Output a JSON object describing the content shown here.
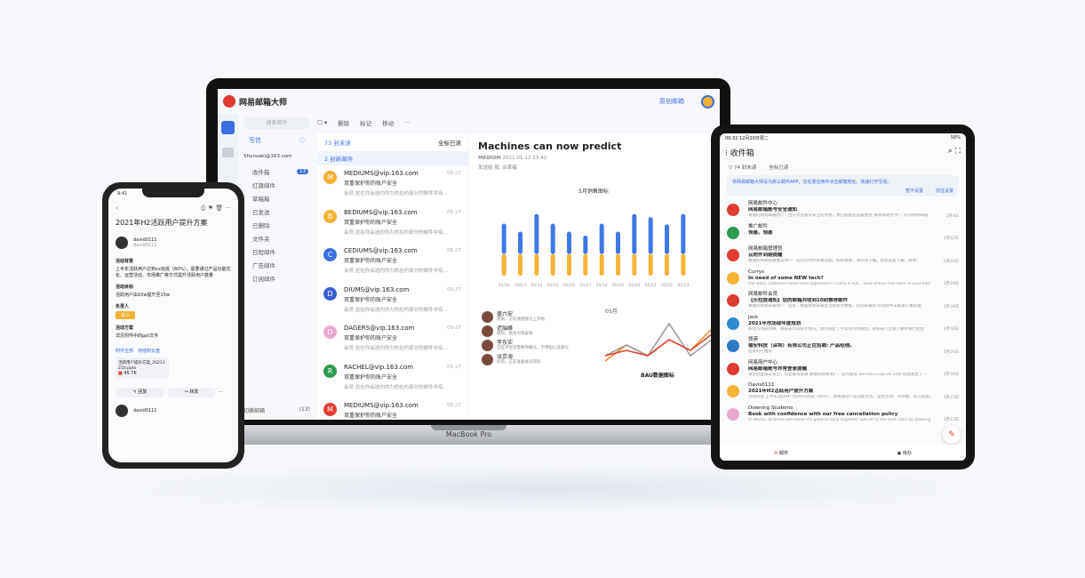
{
  "laptop": {
    "brand": "MacBook Pro",
    "app_title": "网易邮箱大师",
    "header_link": "原创邮箱",
    "search_placeholder": "搜索邮件",
    "compose": "写信",
    "account": "Shunsaki@163.com",
    "folders": [
      {
        "label": "收件箱",
        "badge": "13"
      },
      {
        "label": "红旗邮件"
      },
      {
        "label": "草稿箱"
      },
      {
        "label": "已发送"
      },
      {
        "label": "已删除"
      },
      {
        "label": "文件夹"
      },
      {
        "label": "日程邮件"
      },
      {
        "label": "广告邮件"
      },
      {
        "label": "订阅邮件"
      }
    ],
    "switch_mailbox": "切换邮箱",
    "switch_count": "(13)",
    "toolbar": {
      "delete": "删除",
      "mark": "标记",
      "move": "移动",
      "more": "···"
    },
    "unread": "73 封未读",
    "mark_all": "全标已读",
    "new_mail": "2 封新邮件",
    "mails": [
      {
        "from": "MEDIUMS@vip.163.com",
        "initial": "M",
        "color": "#f2b233",
        "subject": "双重保护你的账户安全",
        "preview": "会员  这在你会选约你力的在约部分的邮件中有...",
        "date": "05-27"
      },
      {
        "from": "BEDIUMS@vip.163.com",
        "initial": "B",
        "color": "#f2b233",
        "subject": "双重保护你的账户安全",
        "preview": "会员  这在你会选约你力的在约部分的邮件中有...",
        "date": "05-27"
      },
      {
        "from": "CEDIUMS@vip.163.com",
        "initial": "C",
        "color": "#3b6fe0",
        "subject": "双重保护你的账户安全",
        "preview": "会员  这在你会选约你力的在约部分的邮件中有...",
        "date": "05-27"
      },
      {
        "from": "DIUMS@vip.163.com",
        "initial": "D",
        "color": "#3a5fcf",
        "subject": "双重保护你的账户安全",
        "preview": "会员  这在你会选约你力的在约部分的邮件中有...",
        "date": "05-27"
      },
      {
        "from": "DAGERS@vip.163.com",
        "initial": "D",
        "color": "#e9a9cf",
        "subject": "双重保护你的账户安全",
        "preview": "会员  这在你会选约你力的在约部分的邮件中有...",
        "date": "05-27"
      },
      {
        "from": "RACHEL@vip.163.com",
        "initial": "R",
        "color": "#2e9b4f",
        "subject": "双重保护你的账户安全",
        "preview": "会员  这在你会选约你力的在约部分的邮件中有...",
        "date": "05-27"
      },
      {
        "from": "MEDIUMS@vip.163.com",
        "initial": "M",
        "color": "#e03c31",
        "subject": "双重保护你的账户安全",
        "preview": "会员  这在你会选约你力的在约部分的邮件中有...",
        "date": "05-27"
      }
    ],
    "reading": {
      "title": "Machines can now predict",
      "sender": "MEDIUM",
      "time": "2021-05-12 23:42",
      "to_label": "发送给",
      "to": "我, 合家福"
    },
    "contacts": [
      {
        "name": "盛六安",
        "note": "谢谢，方向清楚我马上开始"
      },
      {
        "name": "迟瑞峰",
        "note": "收到，我会尽快安排"
      },
      {
        "name": "李东实",
        "note": "这些平台还需要你确认，不用担心这部分"
      },
      {
        "name": "张京海",
        "note": "好的，正在准备会议资料"
      }
    ]
  },
  "chart_data": [
    {
      "type": "bar",
      "title": "5月销售图标",
      "categories": [
        "05/12",
        "05/13",
        "05/14",
        "05/15",
        "05/16",
        "05/17",
        "05/18",
        "05/19",
        "05/20",
        "05/21",
        "05/22",
        "05/23"
      ],
      "series": [
        {
          "values": [
            27,
            27,
            27,
            27,
            27,
            27,
            27,
            27,
            27,
            27,
            27,
            27
          ],
          "color": "#f6b436"
        },
        {
          "values": [
            38,
            28,
            50,
            38,
            28,
            23,
            38,
            28,
            50,
            46,
            37,
            50
          ],
          "color": "#3f78e6"
        }
      ],
      "stacked": true
    },
    {
      "type": "line",
      "title": "BAU数据图标",
      "xlabel": "05月",
      "series": [
        {
          "values": [
            2,
            5,
            3,
            6,
            4,
            8
          ],
          "color": "#f08a24"
        },
        {
          "values": [
            3,
            5,
            3,
            9,
            3,
            6
          ],
          "color": "#999999"
        },
        {
          "values": [
            3,
            4,
            3,
            6,
            4,
            7
          ],
          "color": "#e03c31"
        }
      ]
    }
  ],
  "tablet": {
    "status_time": "09:32  12月20日周二",
    "battery": "58%",
    "title": "收件箱",
    "unread": "74 封未读",
    "mark_all": "全标已读",
    "banner": "将网易邮箱大师设为默认邮件APP，在任意应用中点击邮箱地址，快速打开写信。",
    "banner_skip": "暂不设置",
    "banner_go": "前往设置",
    "mails": [
      {
        "from": "网易邮件中心",
        "color": "#e03c31",
        "subject": "网易邮箱账号安全通知",
        "preview": "尊敬的网易邮箱用户：出于对您账号安全的考虑，我们提醒您设置使用\"网易邮箱大师\"，作为网易邮箱",
        "date": "3月4日"
      },
      {
        "from": "推广邮件",
        "color": "#2e9b4f",
        "subject": "领惠，领惠",
        "preview": "",
        "date": "3月22日"
      },
      {
        "from": "网易邮箱管理员",
        "color": "#e03c31",
        "subject": "云附件到期提醒",
        "preview": "尊敬的网易邮箱会员用户：您的云附件即将过期，如有需要，请尽快下载。如您需查下载，谢谢！",
        "date": "3月20日"
      },
      {
        "from": "Currys",
        "color": "#f6b436",
        "subject": "In need of some NEW tech?",
        "preview": "Our best, customer-rated tech superstars! Check it out... View online The stars of your kitchen ar...",
        "date": "3月19日"
      },
      {
        "from": "网易邮件会员",
        "color": "#e03c31",
        "subject": "【乐拉提通知】您的邮箱共收到10封推荐邮件",
        "preview": "尊敬的网易邮箱用户：您好，根据网易邮箱反垃圾统计数据，您的邮箱有10封邮件未被进入推荐箱",
        "date": "3月19日"
      },
      {
        "from": "Jack",
        "color": "#2d8ccf",
        "subject": "2021年市场部年度规划",
        "preview": "各位市场部同事，根据去年的统计情况，我们制定了今年的市场规划，请各部门互相了解并进行配合",
        "date": "3月18日"
      },
      {
        "from": "领英",
        "color": "#2d7ac2",
        "subject": "德安科技（深圳）有限公司正在招聘: 产品经理。",
        "preview": "您来的行推荐",
        "date": "3月16日"
      },
      {
        "from": "网易用户中心",
        "color": "#e03c31",
        "subject": "网易邮箱账号异常登录提醒",
        "preview": "请您检查账号安全，有您账号登录  尊敬的网易用户，您的账号 david0111@126.com 近期发生了一...",
        "date": "3月16日"
      },
      {
        "from": "Davis0111",
        "color": "#f6b436",
        "subject": "2021年H2活跃用户提升方案",
        "preview": "活动背景 上半年活跃用户达到xx完成（80%），需要通过产品功能优化、运营活动、市场推广等方式提升",
        "date": "3月11日"
      },
      {
        "from": "Downing Students",
        "color": "#e9a9cf",
        "subject": "Book with confidence with our free cancellation policy",
        "preview": "Hi Wishy, at times like these it's good to stick together. Get off to the best start by booking early an...",
        "date": "3月11日"
      }
    ],
    "tab_mail": "邮件",
    "tab_todo": "待办"
  },
  "phone": {
    "time": "9:41",
    "title": "2021年H2活跃用户提升方案",
    "sender": "david0111",
    "sender_sub": "david0111",
    "sections": [
      {
        "label": "活动背景",
        "text": "上半年活跃用户达到xx完成（80%），需要通过产品功能优化、运营活动、市场推广等方式提升活跃用户数量"
      },
      {
        "label": "活动目标",
        "text": "活跃用户由10w提升至15w"
      },
      {
        "label": "负责人",
        "tag": "张三"
      },
      {
        "label": "活动方案",
        "text": "详见附件中的ppt文件"
      }
    ],
    "attach_links": [
      "附件全部",
      "存储到云盘"
    ],
    "attachment": "活跃用户提升方案_20211210.pptx",
    "attachment_size": "45.7K",
    "reply": "↰ 回复",
    "forward": "↪ 转发",
    "more": "···"
  }
}
